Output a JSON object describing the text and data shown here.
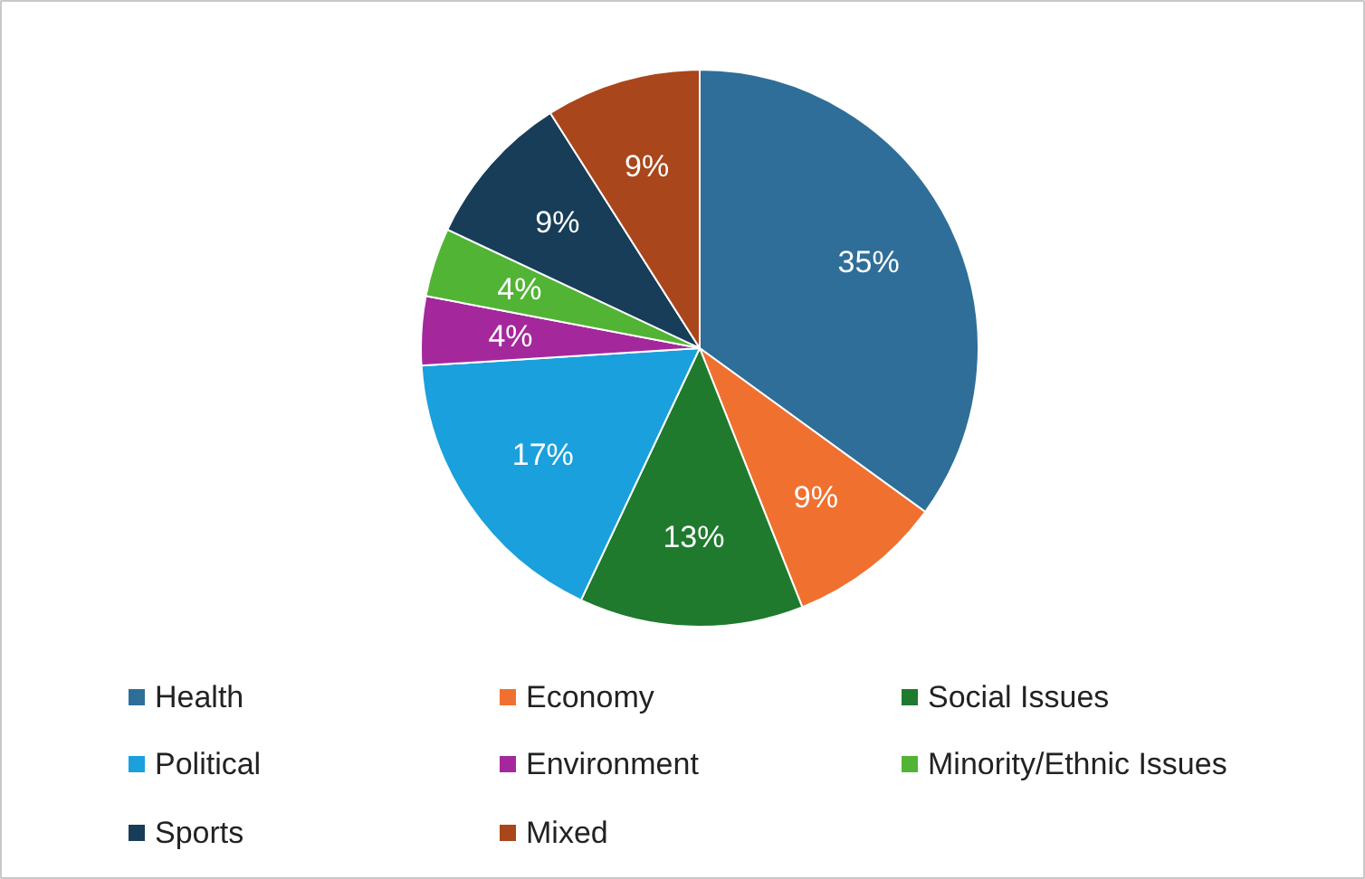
{
  "chart_data": {
    "type": "pie",
    "categories": [
      "Health",
      "Economy",
      "Social Issues",
      "Political",
      "Environment",
      "Minority/Ethnic Issues",
      "Sports",
      "Mixed"
    ],
    "values": [
      35,
      9,
      13,
      17,
      4,
      4,
      9,
      9
    ],
    "value_labels": [
      "35%",
      "9%",
      "13%",
      "17%",
      "4%",
      "4%",
      "9%",
      "9%"
    ],
    "colors": [
      "#2f6e98",
      "#f07030",
      "#1f7a2e",
      "#1aa0dc",
      "#a4289c",
      "#52b435",
      "#173d58",
      "#a9461b"
    ],
    "legend": "bottom"
  }
}
